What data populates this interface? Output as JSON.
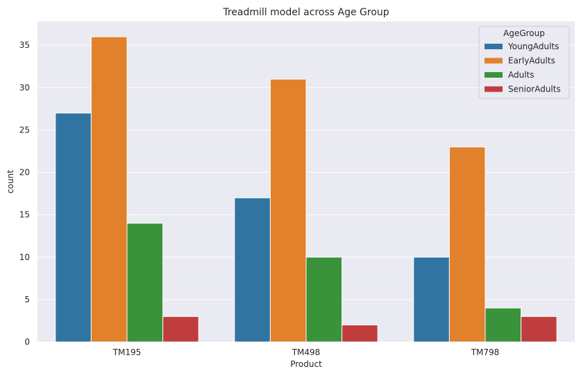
{
  "chart_data": {
    "type": "bar",
    "title": "Treadmill model across Age Group",
    "xlabel": "Product",
    "ylabel": "count",
    "categories": [
      "TM195",
      "TM498",
      "TM798"
    ],
    "series": [
      {
        "name": "YoungAdults",
        "values": [
          27,
          17,
          10
        ],
        "color": "#3274a1"
      },
      {
        "name": "EarlyAdults",
        "values": [
          36,
          31,
          23
        ],
        "color": "#e1812c"
      },
      {
        "name": "Adults",
        "values": [
          14,
          10,
          4
        ],
        "color": "#3a923a"
      },
      {
        "name": "SeniorAdults",
        "values": [
          3,
          2,
          3
        ],
        "color": "#c03d3e"
      }
    ],
    "ylim": [
      0,
      37.8
    ],
    "yticks": [
      0,
      5,
      10,
      15,
      20,
      25,
      30,
      35
    ],
    "grid": true,
    "legend": {
      "title": "AgeGroup",
      "position": "top-right"
    },
    "background": "#eaeaf2"
  }
}
